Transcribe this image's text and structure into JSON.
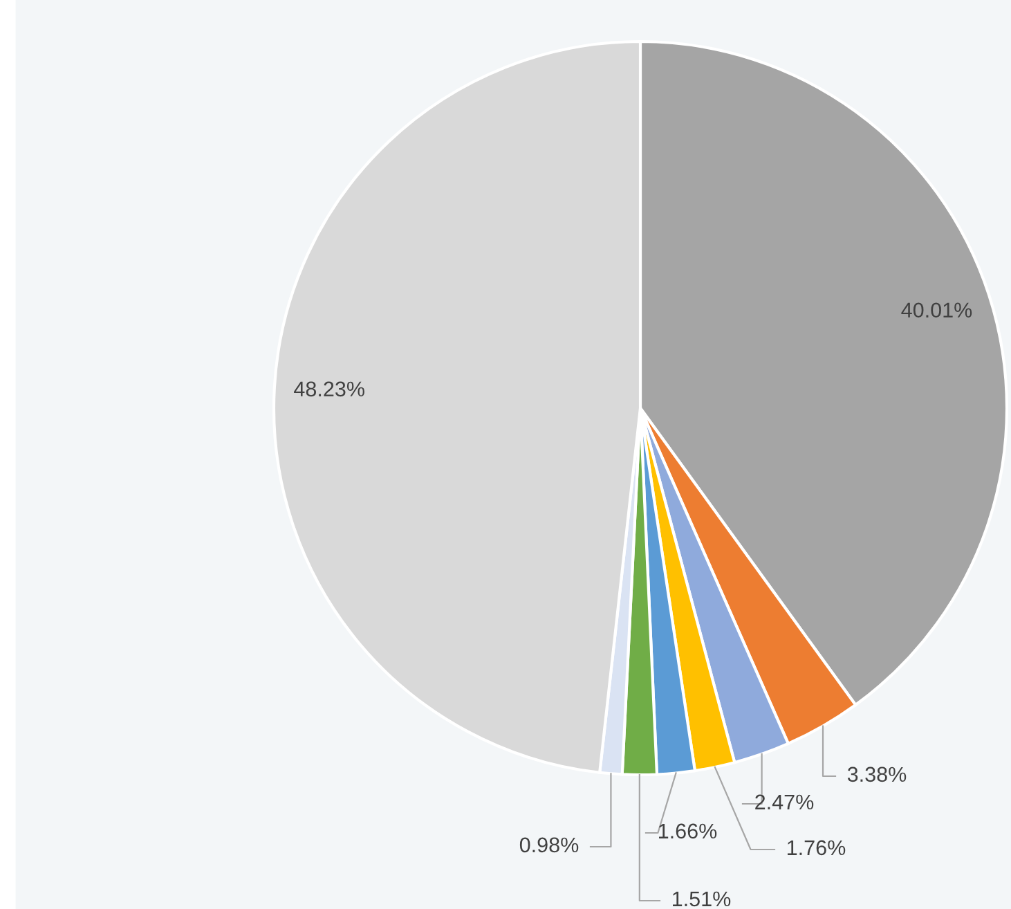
{
  "chart_data": {
    "type": "pie",
    "categories": [
      null,
      null,
      null,
      null,
      null,
      null,
      null,
      null
    ],
    "values": [
      40.01,
      3.38,
      2.47,
      1.76,
      1.66,
      1.51,
      0.98,
      48.23
    ],
    "colors": [
      "#a5a5a5",
      "#ed7d31",
      "#8faadc",
      "#ffc000",
      "#5b9bd5",
      "#70ad47",
      "#dae3f3",
      "#d9d9d9"
    ],
    "value_labels": [
      "40.01%",
      "3.38%",
      "2.47%",
      "1.76%",
      "1.66%",
      "1.51%",
      "0.98%",
      "48.23%"
    ],
    "legend": false
  }
}
